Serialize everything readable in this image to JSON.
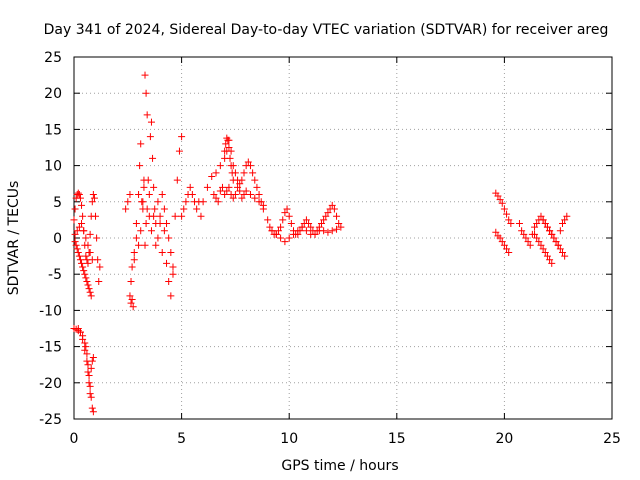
{
  "chart_data": {
    "type": "scatter",
    "title": "Day 341 of 2024, Sidereal Day-to-day VTEC variation (SDTVAR) for receiver areg",
    "xlabel": "GPS time / hours",
    "ylabel": "SDTVAR / TECUs",
    "xlim": [
      0,
      25
    ],
    "ylim": [
      -25,
      25
    ],
    "xticks": [
      0,
      5,
      10,
      15,
      20,
      25
    ],
    "yticks": [
      -25,
      -20,
      -15,
      -10,
      -5,
      0,
      5,
      10,
      15,
      20,
      25
    ],
    "grid": true,
    "marker": "+",
    "marker_color": "#ff0000",
    "series": [
      {
        "name": "SDTVAR",
        "x": [
          0.0,
          0.05,
          0.1,
          0.15,
          0.2,
          0.25,
          0.3,
          0.35,
          0.4,
          0.45,
          0.5,
          0.55,
          0.6,
          0.65,
          0.7,
          0.75,
          0.8,
          0.85,
          0.9,
          0.95,
          1.0,
          1.05,
          1.1,
          1.15,
          1.2,
          0.05,
          0.1,
          0.15,
          0.2,
          0.25,
          0.3,
          0.35,
          0.4,
          0.45,
          0.5,
          0.55,
          0.6,
          0.65,
          0.7,
          0.75,
          0.8,
          0.05,
          0.15,
          0.25,
          0.35,
          0.45,
          0.55,
          0.65,
          0.75,
          0.85,
          0.0,
          0.1,
          0.2,
          0.3,
          0.4,
          0.5,
          0.55,
          0.6,
          0.65,
          0.7,
          0.75,
          0.8,
          0.85,
          0.9,
          0.2,
          0.3,
          0.4,
          0.5,
          0.6,
          0.65,
          0.7,
          0.75,
          0.8,
          0.85,
          0.9,
          2.4,
          2.5,
          2.6,
          2.65,
          2.7,
          2.75,
          2.8,
          2.9,
          3.0,
          3.05,
          3.1,
          3.15,
          3.2,
          3.25,
          3.3,
          3.35,
          3.4,
          3.45,
          3.5,
          3.55,
          3.6,
          3.65,
          3.7,
          3.75,
          3.8,
          3.9,
          4.0,
          4.1,
          4.2,
          4.3,
          4.4,
          4.5,
          4.6,
          4.7,
          4.8,
          4.9,
          5.0,
          2.6,
          2.65,
          2.7,
          2.8,
          2.9,
          3.0,
          3.1,
          3.2,
          3.25,
          3.3,
          3.35,
          3.4,
          3.5,
          3.6,
          3.7,
          3.8,
          3.9,
          4.0,
          4.1,
          4.2,
          4.3,
          4.4,
          4.5,
          4.6,
          5.0,
          5.1,
          5.2,
          5.3,
          5.4,
          5.5,
          5.6,
          5.7,
          5.8,
          5.9,
          6.0,
          6.2,
          6.4,
          6.6,
          6.8,
          7.0,
          7.1,
          7.2,
          7.3,
          7.4,
          7.5,
          7.6,
          7.7,
          7.8,
          7.9,
          8.0,
          8.1,
          8.2,
          8.3,
          8.4,
          8.5,
          8.6,
          8.7,
          8.8,
          6.5,
          6.6,
          6.7,
          6.8,
          6.9,
          7.0,
          7.1,
          7.2,
          7.3,
          7.4,
          7.5,
          7.6,
          7.7,
          7.8,
          7.9,
          8.0,
          8.2,
          8.4,
          8.6,
          8.8,
          7.0,
          7.05,
          7.1,
          7.15,
          7.2,
          7.25,
          7.3,
          7.35,
          7.4,
          9.0,
          9.1,
          9.2,
          9.3,
          9.4,
          9.5,
          9.6,
          9.7,
          9.8,
          9.9,
          10.0,
          10.1,
          10.2,
          10.3,
          10.4,
          10.5,
          10.6,
          10.7,
          10.8,
          10.9,
          11.0,
          11.1,
          11.2,
          11.3,
          11.4,
          11.5,
          11.6,
          11.7,
          11.8,
          11.9,
          12.0,
          12.1,
          12.2,
          12.3,
          12.4,
          9.2,
          9.4,
          9.6,
          9.8,
          10.0,
          10.2,
          10.4,
          10.6,
          10.8,
          11.0,
          11.2,
          11.4,
          11.6,
          11.8,
          12.0,
          12.2,
          19.6,
          19.7,
          19.8,
          19.9,
          20.0,
          20.1,
          20.2,
          20.3,
          19.6,
          19.7,
          19.8,
          19.9,
          20.0,
          20.1,
          20.2,
          20.7,
          20.8,
          20.9,
          21.0,
          21.1,
          21.2,
          21.3,
          21.4,
          21.5,
          21.6,
          21.7,
          21.8,
          21.9,
          22.0,
          22.1,
          22.2,
          22.3,
          22.4,
          22.5,
          22.6,
          22.7,
          22.8,
          22.9,
          21.4,
          21.5,
          21.6,
          21.7,
          21.8,
          21.9,
          22.0,
          22.1,
          22.2,
          21.8,
          21.9,
          22.0,
          22.1,
          22.2,
          22.3,
          22.4,
          22.5,
          22.6,
          22.7,
          22.8
        ],
        "y": [
          2.5,
          4.0,
          5.5,
          6.0,
          6.2,
          6.0,
          5.5,
          4.5,
          3.0,
          1.0,
          -1.0,
          -2.5,
          -3.0,
          -3.5,
          -2.0,
          0.5,
          3.0,
          5.0,
          6.0,
          5.5,
          3.0,
          0.0,
          -3.0,
          -6.0,
          -4.0,
          -0.5,
          -1.0,
          -1.5,
          -2.0,
          -2.5,
          -3.0,
          -3.5,
          -4.0,
          -4.5,
          -5.0,
          -5.5,
          -6.0,
          -6.5,
          -7.0,
          -7.5,
          -8.0,
          0.5,
          1.0,
          1.5,
          2.0,
          1.0,
          0.0,
          -1.0,
          -2.0,
          -3.0,
          -12.5,
          -12.6,
          -12.8,
          -13.0,
          -13.5,
          -14.5,
          -15.0,
          -16.0,
          -17.5,
          -19.0,
          -20.5,
          -22.0,
          -23.5,
          -24.0,
          -12.5,
          -13.0,
          -14.0,
          -15.5,
          -17.0,
          -18.5,
          -20.0,
          -21.5,
          -18.0,
          -17.0,
          -16.5,
          4.0,
          5.0,
          6.0,
          -9.0,
          -8.5,
          -9.5,
          -3.0,
          2.0,
          6.0,
          10.0,
          13.0,
          5.0,
          4.0,
          7.0,
          22.5,
          20.0,
          17.0,
          8.0,
          3.0,
          14.0,
          16.0,
          11.0,
          7.0,
          4.0,
          2.0,
          5.0,
          3.0,
          6.0,
          4.0,
          2.0,
          0.0,
          -2.0,
          -5.0,
          3.0,
          8.0,
          12.0,
          14.0,
          -8.0,
          -6.0,
          -4.0,
          -2.0,
          0.0,
          -1.0,
          1.0,
          5.0,
          8.0,
          -1.0,
          2.0,
          4.0,
          6.0,
          1.0,
          3.0,
          -1.0,
          0.0,
          2.0,
          -2.0,
          1.0,
          -3.5,
          -6.0,
          -8.0,
          -4.0,
          3.0,
          4.0,
          5.0,
          6.0,
          7.0,
          6.0,
          5.0,
          4.0,
          5.0,
          3.0,
          5.0,
          7.0,
          8.5,
          9.0,
          10.0,
          11.0,
          12.0,
          13.5,
          12.0,
          10.0,
          9.0,
          8.0,
          7.5,
          8.0,
          9.0,
          10.0,
          10.5,
          10.0,
          9.0,
          8.0,
          7.0,
          6.0,
          5.0,
          4.0,
          6.0,
          5.5,
          5.0,
          6.5,
          7.0,
          6.0,
          6.5,
          7.0,
          6.0,
          5.5,
          6.0,
          7.0,
          6.5,
          5.5,
          6.0,
          6.5,
          6.0,
          5.5,
          5.0,
          4.5,
          12.0,
          13.0,
          13.8,
          13.5,
          12.5,
          11.0,
          10.0,
          9.0,
          8.0,
          2.5,
          1.5,
          1.0,
          0.5,
          0.5,
          1.0,
          1.5,
          2.5,
          3.5,
          4.0,
          3.0,
          2.0,
          1.0,
          0.5,
          0.5,
          1.0,
          1.5,
          2.0,
          2.5,
          2.0,
          1.5,
          1.0,
          0.5,
          1.0,
          1.5,
          2.0,
          2.5,
          3.0,
          3.5,
          4.0,
          4.5,
          4.0,
          3.0,
          2.0,
          1.5,
          1.0,
          0.5,
          0.0,
          -0.5,
          0.0,
          0.5,
          1.0,
          1.5,
          1.0,
          0.5,
          0.5,
          1.0,
          1.0,
          0.8,
          1.0,
          1.2,
          6.2,
          5.8,
          5.3,
          4.8,
          4.0,
          3.3,
          2.5,
          2.0,
          0.8,
          0.3,
          0.0,
          -0.5,
          -1.0,
          -1.5,
          -2.0,
          2.0,
          1.0,
          0.5,
          0.0,
          -0.5,
          -1.0,
          0.5,
          1.5,
          2.0,
          2.5,
          3.0,
          2.5,
          2.0,
          1.5,
          1.0,
          0.5,
          0.0,
          -0.5,
          -1.0,
          1.0,
          2.0,
          2.5,
          3.0,
          0.5,
          0.0,
          -0.5,
          -1.0,
          -1.5,
          -2.0,
          -2.5,
          -3.0,
          -3.5,
          2.5,
          2.0,
          1.5,
          1.0,
          0.5,
          0.0,
          -0.5,
          -1.0,
          -1.5,
          -2.0,
          -2.5
        ]
      }
    ]
  }
}
